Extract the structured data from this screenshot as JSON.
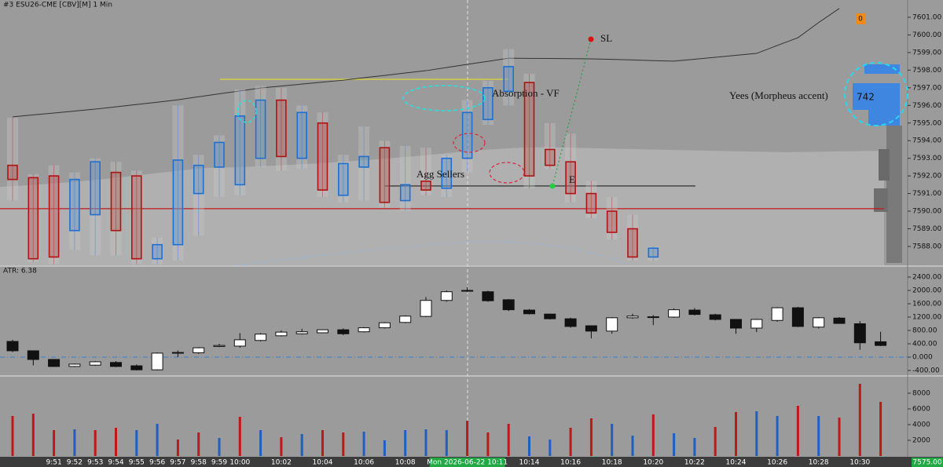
{
  "chart_data": [
    {
      "type": "candlestick",
      "style": "footprint",
      "title": "#3 ESU26-CME [CBV][M]  1 Min",
      "ylim": [
        7586.93,
        7601.98
      ],
      "yticks": [
        {
          "value": 7601,
          "label": "7601.00"
        },
        {
          "value": 7600,
          "label": "7600.00"
        },
        {
          "value": 7599,
          "label": "7599.00"
        },
        {
          "value": 7598,
          "label": "7598.00"
        },
        {
          "value": 7597,
          "label": "7597.00"
        },
        {
          "value": 7596,
          "label": "7596.00"
        },
        {
          "value": 7595,
          "label": "7595.00"
        },
        {
          "value": 7594,
          "label": "7594.00"
        },
        {
          "value": 7593,
          "label": "7593.00"
        },
        {
          "value": 7592,
          "label": "7592.00"
        },
        {
          "value": 7591,
          "label": "7591.00"
        },
        {
          "value": 7590,
          "label": "7590.00"
        },
        {
          "value": 7589,
          "label": "7589.00"
        },
        {
          "value": 7588,
          "label": "7588.00"
        }
      ],
      "up_color": "#1f6fd1",
      "down_color": "#b01212",
      "open": [
        7592.6,
        7591.9,
        7592.0,
        7588.9,
        7589.8,
        7592.2,
        7592.0,
        7587.3,
        7588.1,
        7591.0,
        7592.5,
        7591.5,
        7593.0,
        7596.3,
        7593.0,
        7595.0,
        7590.9,
        7592.5,
        7593.6,
        7590.6,
        7591.7,
        7591.3,
        7593.0,
        7595.2,
        7596.8,
        7597.3,
        7593.5,
        7592.8,
        7591.0,
        7590.0,
        7589.0,
        7587.4,
        null,
        null,
        null,
        null,
        null,
        null,
        null,
        null,
        null,
        null,
        null
      ],
      "high": [
        7595.3,
        7592.1,
        7592.6,
        7592.2,
        7593.0,
        7592.8,
        7592.3,
        7588.5,
        7596.0,
        7593.2,
        7594.3,
        7596.9,
        7597.1,
        7597.0,
        7596.0,
        7595.6,
        7593.2,
        7594.8,
        7594.0,
        7593.7,
        7593.6,
        7593.2,
        7596.3,
        7597.4,
        7599.2,
        7597.8,
        7595.0,
        7594.4,
        7591.7,
        7590.8,
        7589.8,
        7588.0,
        null,
        null,
        null,
        null,
        null,
        null,
        null,
        null,
        null,
        null,
        null
      ],
      "low": [
        7590.6,
        7587.1,
        7587.0,
        7587.8,
        7587.5,
        7587.5,
        7587.0,
        7587.0,
        7587.2,
        7588.6,
        7590.8,
        7590.9,
        7592.5,
        7592.3,
        7592.4,
        7590.8,
        7590.5,
        7590.6,
        7590.2,
        7590.0,
        7590.9,
        7590.8,
        7592.2,
        7594.9,
        7596.0,
        7591.3,
        7592.4,
        7590.5,
        7589.6,
        7588.4,
        7587.2,
        7587.2,
        null,
        null,
        null,
        null,
        null,
        null,
        null,
        null,
        null,
        null,
        null
      ],
      "close": [
        7591.8,
        7587.3,
        7587.4,
        7591.8,
        7592.8,
        7588.9,
        7587.3,
        7588.1,
        7592.9,
        7592.6,
        7593.9,
        7595.4,
        7596.3,
        7593.1,
        7595.6,
        7591.2,
        7592.7,
        7593.1,
        7590.5,
        7591.5,
        7591.2,
        7593.0,
        7595.6,
        7597.0,
        7598.2,
        7592.0,
        7592.6,
        7591.0,
        7589.9,
        7588.8,
        7587.4,
        7587.9,
        null,
        null,
        null,
        null,
        null,
        null,
        null,
        null,
        null,
        null,
        null
      ],
      "overlay_line": {
        "color": "#333333",
        "values": [
          7595.35,
          7595.46,
          7595.57,
          7595.68,
          7595.79,
          7595.92,
          7596.05,
          7596.18,
          7596.32,
          7596.49,
          7596.66,
          7596.82,
          7596.99,
          7597.1,
          7597.21,
          7597.32,
          7597.43,
          7597.57,
          7597.7,
          7597.84,
          7597.97,
          7598.15,
          7598.33,
          7598.5,
          7598.68,
          7598.67,
          7598.66,
          7598.65,
          7598.64,
          7598.61,
          7598.58,
          7598.54,
          7598.51,
          7598.62,
          7598.73,
          7598.84,
          7598.95,
          7599.4,
          7599.84,
          7600.7,
          7601.5,
          null,
          null
        ]
      },
      "levels": [
        {
          "value": 7597.48,
          "color": "#e6dc2a"
        },
        {
          "value": 7590.14,
          "color": "#c01818"
        },
        {
          "value": 7591.43,
          "color": "#222222"
        }
      ],
      "annotations": [
        "SL",
        "Absorption - VF",
        "Yees (Morpheus accent)",
        "Agg Sellers",
        "E",
        "742",
        "0",
        "7575.00"
      ]
    },
    {
      "type": "candlestick",
      "style": "plain",
      "title": "ATR: 6.38",
      "ylim": [
        -541,
        2706
      ],
      "yticks": [
        {
          "value": 2400,
          "label": "2400.00"
        },
        {
          "value": 2000,
          "label": "2000.00"
        },
        {
          "value": 1600,
          "label": "1600.00"
        },
        {
          "value": 1200,
          "label": "1200.00"
        },
        {
          "value": 800,
          "label": "800.00"
        },
        {
          "value": 400,
          "label": "400.00"
        },
        {
          "value": 0,
          "label": "0.000"
        },
        {
          "value": -400,
          "label": "-400.00"
        }
      ],
      "zero_line": 0,
      "open": [
        470,
        190,
        -70,
        -280,
        -240,
        -160,
        -260,
        -380,
        140,
        130,
        320,
        330,
        500,
        640,
        700,
        730,
        820,
        760,
        880,
        1040,
        1220,
        1700,
        2000,
        1960,
        1720,
        1410,
        1290,
        1150,
        940,
        780,
        1180,
        1210,
        1200,
        1410,
        1270,
        1130,
        870,
        1100,
        1480,
        900,
        1170,
        1000,
        460
      ],
      "high": [
        520,
        200,
        -60,
        -190,
        -120,
        -120,
        -220,
        140,
        200,
        300,
        400,
        720,
        720,
        800,
        850,
        830,
        860,
        900,
        1050,
        1250,
        1800,
        2000,
        2100,
        1990,
        1740,
        1440,
        1300,
        1180,
        950,
        1200,
        1300,
        1260,
        1460,
        1470,
        1300,
        1140,
        1150,
        1500,
        1510,
        1200,
        1200,
        1080,
        760
      ],
      "low": [
        150,
        -250,
        -290,
        -300,
        -260,
        -300,
        -400,
        -400,
        0,
        100,
        300,
        280,
        470,
        620,
        680,
        720,
        660,
        740,
        860,
        1020,
        1200,
        1660,
        1950,
        1660,
        1380,
        1280,
        1130,
        880,
        560,
        700,
        1150,
        960,
        1180,
        1250,
        1100,
        700,
        750,
        1060,
        900,
        860,
        1000,
        220,
        330
      ],
      "close": [
        190,
        -70,
        -280,
        -210,
        -140,
        -280,
        -380,
        120,
        120,
        280,
        350,
        520,
        690,
        750,
        760,
        820,
        700,
        880,
        1030,
        1230,
        1700,
        1960,
        1980,
        1690,
        1420,
        1300,
        1150,
        920,
        780,
        1180,
        1230,
        1190,
        1420,
        1280,
        1130,
        870,
        1130,
        1480,
        920,
        1180,
        1010,
        430,
        350
      ]
    },
    {
      "type": "bar",
      "ylim": [
        0,
        10100
      ],
      "yticks": [
        8000,
        6000,
        4000,
        2000
      ],
      "categories": [
        null,
        null,
        "9:51",
        "9:52",
        "9:53",
        "9:54",
        "9:55",
        "9:56",
        "9:57",
        "9:58",
        "9:59",
        "10:00",
        null,
        "10:02",
        null,
        "10:04",
        null,
        "10:06",
        null,
        "10:08",
        null,
        null,
        "Mon 2026-06-22 10:11",
        null,
        null,
        "10:14",
        null,
        "10:16",
        null,
        "10:18",
        null,
        "10:20",
        null,
        "10:22",
        null,
        "10:24",
        null,
        "10:26",
        null,
        "10:28",
        null,
        "10:30",
        null
      ],
      "values": [
        5100,
        5400,
        3300,
        3400,
        3300,
        3600,
        3300,
        4100,
        2100,
        3000,
        2300,
        5000,
        3300,
        2400,
        2800,
        3300,
        3000,
        3100,
        2000,
        3300,
        3400,
        3300,
        4500,
        3000,
        4100,
        2500,
        2100,
        3600,
        4800,
        4100,
        2600,
        5300,
        2900,
        2300,
        3700,
        5600,
        5700,
        5100,
        6400,
        5100,
        4900,
        9200,
        6900
      ],
      "colors": [
        "#c01818",
        "#c01818",
        "#c01818",
        "#1f5fbf",
        "#c01818",
        "#c01818",
        "#1f5fbf",
        "#1f5fbf",
        "#c01818",
        "#c01818",
        "#1f5fbf",
        "#c01818",
        "#1f5fbf",
        "#c01818",
        "#1f5fbf",
        "#c01818",
        "#c01818",
        "#1f5fbf",
        "#1f5fbf",
        "#1f5fbf",
        "#1f5fbf",
        "#1f5fbf",
        "#c01818",
        "#c01818",
        "#c01818",
        "#1f5fbf",
        "#1f5fbf",
        "#c01818",
        "#c01818",
        "#1f5fbf",
        "#1f5fbf",
        "#c01818",
        "#1f5fbf",
        "#1f5fbf",
        "#c01818",
        "#c01818",
        "#1f5fbf",
        "#1f5fbf",
        "#c01818",
        "#1f5fbf",
        "#c01818",
        "#c01818",
        "#c01818"
      ]
    }
  ]
}
